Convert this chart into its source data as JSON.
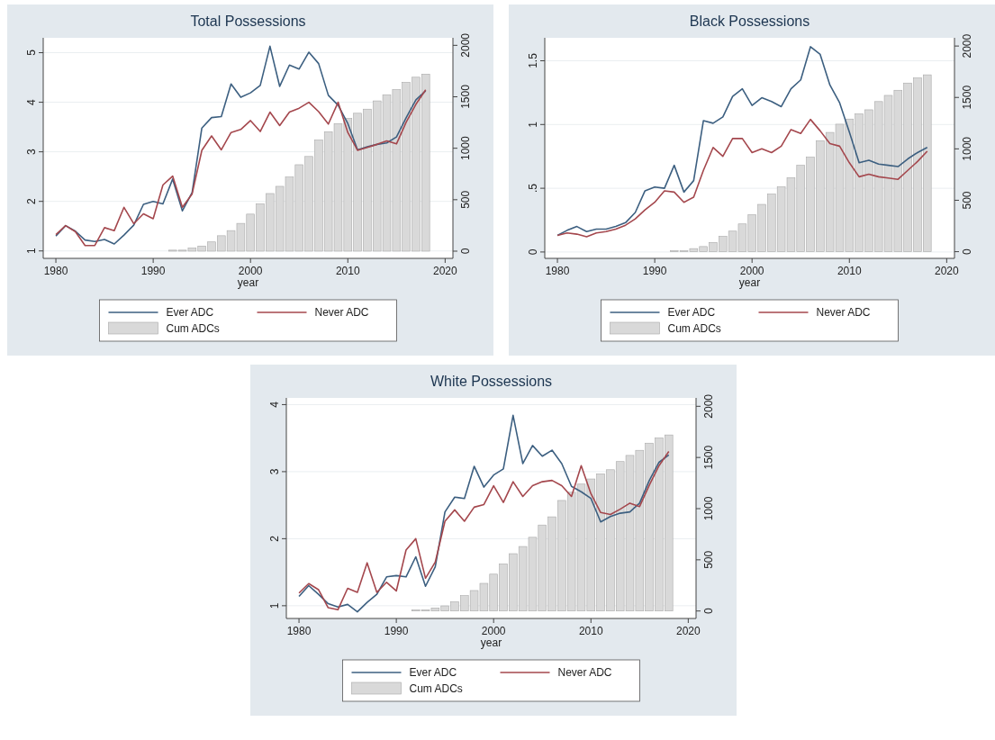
{
  "chart_data": [
    {
      "type": "line",
      "title": "Total Possessions",
      "xlabel": "year",
      "x": [
        1980,
        1981,
        1982,
        1983,
        1984,
        1985,
        1986,
        1987,
        1988,
        1989,
        1990,
        1991,
        1992,
        1993,
        1994,
        1995,
        1996,
        1997,
        1998,
        1999,
        2000,
        2001,
        2002,
        2003,
        2004,
        2005,
        2006,
        2007,
        2008,
        2009,
        2010,
        2011,
        2012,
        2013,
        2014,
        2015,
        2016,
        2017,
        2018
      ],
      "xlim": [
        1978.7,
        2020.8
      ],
      "xticks": [
        1980,
        1990,
        2000,
        2010,
        2020
      ],
      "ylim": [
        0.85,
        5.3
      ],
      "yticks": [
        1,
        2,
        3,
        4,
        5
      ],
      "y2lim": [
        -70,
        2073
      ],
      "y2ticks": [
        0,
        500,
        1000,
        1500,
        2000
      ],
      "grid": "y",
      "legend": "bottom",
      "series": [
        {
          "name": "Cum ADCs",
          "type": "bar",
          "axis": "y2",
          "color": "#d9d9d9",
          "x": [
            1991,
            1992,
            1993,
            1994,
            1995,
            1996,
            1997,
            1998,
            1999,
            2000,
            2001,
            2002,
            2003,
            2004,
            2005,
            2006,
            2007,
            2008,
            2009,
            2010,
            2011,
            2012,
            2013,
            2014,
            2015,
            2016,
            2017,
            2018
          ],
          "values": [
            0,
            10,
            10,
            30,
            50,
            90,
            150,
            200,
            270,
            360,
            460,
            560,
            630,
            720,
            840,
            920,
            1080,
            1160,
            1240,
            1290,
            1340,
            1380,
            1460,
            1520,
            1570,
            1640,
            1690,
            1720
          ]
        },
        {
          "name": "Ever ADC",
          "color": "#3c5f80",
          "values": [
            1.3,
            1.51,
            1.4,
            1.22,
            1.19,
            1.23,
            1.14,
            1.32,
            1.52,
            1.94,
            2.0,
            1.95,
            2.45,
            1.81,
            2.18,
            3.48,
            3.69,
            3.71,
            4.37,
            4.1,
            4.19,
            4.34,
            5.13,
            4.32,
            4.75,
            4.67,
            5.01,
            4.78,
            4.14,
            3.94,
            3.57,
            3.04,
            3.1,
            3.15,
            3.18,
            3.3,
            3.69,
            4.05,
            4.23
          ]
        },
        {
          "name": "Never ADC",
          "color": "#a4474d",
          "values": [
            1.33,
            1.51,
            1.39,
            1.11,
            1.11,
            1.47,
            1.41,
            1.88,
            1.55,
            1.75,
            1.65,
            2.33,
            2.51,
            1.88,
            2.15,
            3.03,
            3.32,
            3.04,
            3.39,
            3.45,
            3.63,
            3.41,
            3.8,
            3.53,
            3.8,
            3.88,
            4.0,
            3.81,
            3.56,
            4.0,
            3.39,
            3.03,
            3.09,
            3.15,
            3.22,
            3.16,
            3.6,
            3.96,
            4.25
          ]
        }
      ]
    },
    {
      "type": "line",
      "title": "Black Possessions",
      "xlabel": "year",
      "x": [
        1980,
        1981,
        1982,
        1983,
        1984,
        1985,
        1986,
        1987,
        1988,
        1989,
        1990,
        1991,
        1992,
        1993,
        1994,
        1995,
        1996,
        1997,
        1998,
        1999,
        2000,
        2001,
        2002,
        2003,
        2004,
        2005,
        2006,
        2007,
        2008,
        2009,
        2010,
        2011,
        2012,
        2013,
        2014,
        2015,
        2016,
        2017,
        2018
      ],
      "xlim": [
        1978.7,
        2020.8
      ],
      "xticks": [
        1980,
        1990,
        2000,
        2010,
        2020
      ],
      "ylim": [
        -0.05,
        1.68
      ],
      "yticks": [
        0,
        {
          "value": 0.5,
          "label": ".5"
        },
        1,
        1.5
      ],
      "y2lim": [
        -65,
        2080
      ],
      "y2ticks": [
        0,
        500,
        1000,
        1500,
        2000
      ],
      "grid": "y",
      "legend": "bottom",
      "series": [
        {
          "name": "Cum ADCs",
          "type": "bar",
          "axis": "y2",
          "color": "#d9d9d9",
          "x": [
            1991,
            1992,
            1993,
            1994,
            1995,
            1996,
            1997,
            1998,
            1999,
            2000,
            2001,
            2002,
            2003,
            2004,
            2005,
            2006,
            2007,
            2008,
            2009,
            2010,
            2011,
            2012,
            2013,
            2014,
            2015,
            2016,
            2017,
            2018
          ],
          "values": [
            0,
            10,
            10,
            30,
            50,
            90,
            150,
            200,
            270,
            360,
            460,
            560,
            630,
            720,
            840,
            920,
            1080,
            1160,
            1240,
            1290,
            1340,
            1380,
            1460,
            1520,
            1570,
            1640,
            1690,
            1720
          ]
        },
        {
          "name": "Ever ADC",
          "color": "#3c5f80",
          "values": [
            0.13,
            0.17,
            0.2,
            0.16,
            0.18,
            0.18,
            0.2,
            0.23,
            0.31,
            0.48,
            0.51,
            0.5,
            0.68,
            0.47,
            0.56,
            1.03,
            1.01,
            1.06,
            1.22,
            1.28,
            1.15,
            1.21,
            1.18,
            1.14,
            1.28,
            1.35,
            1.61,
            1.55,
            1.31,
            1.17,
            0.94,
            0.7,
            0.72,
            0.69,
            0.68,
            0.67,
            0.73,
            0.78,
            0.82
          ]
        },
        {
          "name": "Never ADC",
          "color": "#a4474d",
          "values": [
            0.13,
            0.15,
            0.14,
            0.12,
            0.15,
            0.16,
            0.18,
            0.21,
            0.26,
            0.33,
            0.39,
            0.48,
            0.47,
            0.39,
            0.43,
            0.64,
            0.82,
            0.75,
            0.89,
            0.89,
            0.78,
            0.81,
            0.78,
            0.83,
            0.96,
            0.93,
            1.04,
            0.95,
            0.85,
            0.83,
            0.7,
            0.59,
            0.61,
            0.59,
            0.58,
            0.57,
            0.64,
            0.71,
            0.79
          ]
        }
      ]
    },
    {
      "type": "line",
      "title": "White Possessions",
      "xlabel": "year",
      "x": [
        1980,
        1981,
        1982,
        1983,
        1984,
        1985,
        1986,
        1987,
        1988,
        1989,
        1990,
        1991,
        1992,
        1993,
        1994,
        1995,
        1996,
        1997,
        1998,
        1999,
        2000,
        2001,
        2002,
        2003,
        2004,
        2005,
        2006,
        2007,
        2008,
        2009,
        2010,
        2011,
        2012,
        2013,
        2014,
        2015,
        2016,
        2017,
        2018
      ],
      "xlim": [
        1978.7,
        2020.8
      ],
      "xticks": [
        1980,
        1990,
        2000,
        2010,
        2020
      ],
      "ylim": [
        0.81,
        4.1
      ],
      "yticks": [
        1,
        2,
        3,
        4
      ],
      "y2lim": [
        -73,
        2082
      ],
      "y2ticks": [
        0,
        500,
        1000,
        1500,
        2000
      ],
      "grid": "y",
      "legend": "bottom",
      "series": [
        {
          "name": "Cum ADCs",
          "type": "bar",
          "axis": "y2",
          "color": "#d9d9d9",
          "x": [
            1991,
            1992,
            1993,
            1994,
            1995,
            1996,
            1997,
            1998,
            1999,
            2000,
            2001,
            2002,
            2003,
            2004,
            2005,
            2006,
            2007,
            2008,
            2009,
            2010,
            2011,
            2012,
            2013,
            2014,
            2015,
            2016,
            2017,
            2018
          ],
          "values": [
            0,
            10,
            10,
            30,
            50,
            90,
            150,
            200,
            270,
            360,
            460,
            560,
            630,
            720,
            840,
            920,
            1080,
            1160,
            1240,
            1290,
            1340,
            1380,
            1460,
            1520,
            1570,
            1640,
            1690,
            1720
          ]
        },
        {
          "name": "Ever ADC",
          "color": "#3c5f80",
          "values": [
            1.14,
            1.3,
            1.17,
            1.03,
            0.98,
            1.02,
            0.91,
            1.05,
            1.17,
            1.43,
            1.45,
            1.43,
            1.73,
            1.29,
            1.58,
            2.4,
            2.62,
            2.6,
            3.08,
            2.77,
            2.95,
            3.04,
            3.84,
            3.12,
            3.39,
            3.23,
            3.32,
            3.12,
            2.78,
            2.7,
            2.6,
            2.25,
            2.33,
            2.38,
            2.4,
            2.53,
            2.87,
            3.14,
            3.25
          ]
        },
        {
          "name": "Never ADC",
          "color": "#a4474d",
          "values": [
            1.19,
            1.33,
            1.24,
            0.97,
            0.94,
            1.26,
            1.2,
            1.64,
            1.2,
            1.35,
            1.22,
            1.83,
            2.0,
            1.41,
            1.65,
            2.26,
            2.43,
            2.26,
            2.47,
            2.51,
            2.79,
            2.54,
            2.85,
            2.63,
            2.79,
            2.85,
            2.87,
            2.79,
            2.63,
            3.09,
            2.67,
            2.39,
            2.36,
            2.44,
            2.53,
            2.48,
            2.8,
            3.09,
            3.3
          ]
        }
      ]
    }
  ]
}
